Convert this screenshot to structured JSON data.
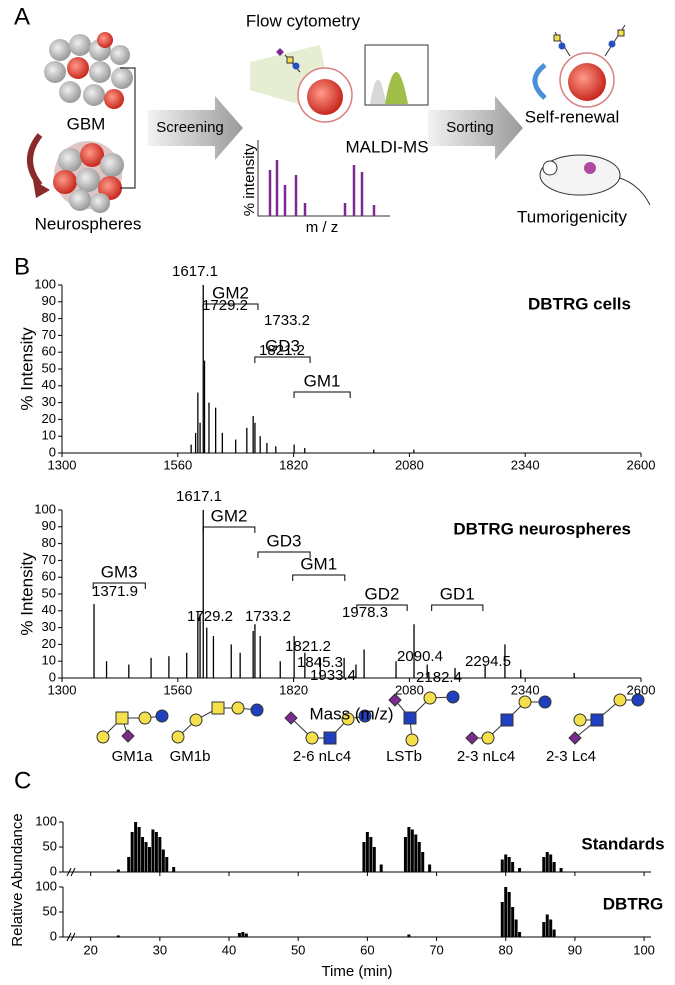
{
  "panel_labels": [
    "A",
    "B",
    "C"
  ],
  "diagram": {
    "gbm": "GBM",
    "neurospheres": "Neurospheres",
    "screening": "Screening",
    "flow_cytometry": "Flow cytometry",
    "maldi_ms": "MALDI-MS",
    "ms_ylabel": "% intensity",
    "ms_xlabel": "m / z",
    "sorting": "Sorting",
    "self_renewal": "Self-renewal",
    "tumorigenicity": "Tumorigenicity"
  },
  "chart_data": [
    {
      "type": "spectrum",
      "title": "DBTRG cells",
      "ylabel": "% Intensity",
      "color": "#000000",
      "xlim": [
        1300,
        2600
      ],
      "xticks": [
        1300,
        1560,
        1820,
        2080,
        2340,
        2600
      ],
      "ylim": [
        0,
        100
      ],
      "yticks": [
        0,
        10,
        20,
        30,
        40,
        50,
        60,
        70,
        80,
        90,
        100
      ],
      "x": [
        1590,
        1600,
        1605,
        1610,
        1617.1,
        1620,
        1630,
        1645,
        1660,
        1690,
        1715,
        1729.2,
        1733.2,
        1745,
        1760,
        1780,
        1821.2,
        1845,
        2000,
        2090
      ],
      "values": [
        5,
        12,
        36,
        18,
        100,
        55,
        30,
        27,
        12,
        8,
        15,
        22,
        18,
        10,
        6,
        4,
        5,
        3,
        2,
        2
      ],
      "peak_labels": [
        1617.1,
        1729.2,
        1733.2,
        1821.2
      ],
      "brackets": [
        {
          "label": "GM2",
          "xrange": [
            1617,
            1740
          ]
        },
        {
          "label": "GD3",
          "xrange": [
            1733,
            1857
          ]
        },
        {
          "label": "GM1",
          "xrange": [
            1821,
            1947
          ]
        }
      ]
    },
    {
      "type": "spectrum",
      "title": "DBTRG neurospheres",
      "ylabel": "% Intensity",
      "xlabel": "Mass (m/z)",
      "color": "#000000",
      "xlim": [
        1300,
        2600
      ],
      "xticks": [
        1300,
        1560,
        1820,
        2080,
        2340,
        2600
      ],
      "ylim": [
        0,
        100
      ],
      "yticks": [
        0,
        10,
        20,
        30,
        40,
        50,
        60,
        70,
        80,
        90,
        100
      ],
      "x": [
        1371.9,
        1400,
        1450,
        1500,
        1540,
        1580,
        1605,
        1610,
        1617.1,
        1625,
        1640,
        1680,
        1700,
        1729.2,
        1733.2,
        1745,
        1790,
        1821.2,
        1845.3,
        1880,
        1933.4,
        1960,
        1978.3,
        2050,
        2090.4,
        2120,
        2182.4,
        2250,
        2294.5,
        2330,
        2450
      ],
      "values": [
        44,
        10,
        8,
        12,
        13,
        15,
        40,
        38,
        100,
        30,
        25,
        20,
        15,
        28,
        32,
        25,
        10,
        25,
        15,
        12,
        12,
        8,
        17,
        10,
        32,
        8,
        6,
        8,
        20,
        5,
        3
      ],
      "peak_labels": [
        1371.9,
        1617.1,
        1729.2,
        1733.2,
        1821.2,
        1845.3,
        1933.4,
        1978.3,
        2090.4,
        2182.4,
        2294.5
      ],
      "brackets": [
        {
          "label": "GM3",
          "xrange": [
            1370,
            1487
          ]
        },
        {
          "label": "GM2",
          "xrange": [
            1617,
            1733
          ]
        },
        {
          "label": "GD3",
          "xrange": [
            1740,
            1857
          ]
        },
        {
          "label": "GM1",
          "xrange": [
            1818,
            1935
          ]
        },
        {
          "label": "GD2",
          "xrange": [
            1962,
            2075
          ]
        },
        {
          "label": "GD1",
          "xrange": [
            2130,
            2245
          ]
        }
      ]
    },
    {
      "type": "chromatogram",
      "xlabel": "Time (min)",
      "ylabel": "Relative Abundance",
      "xlim": [
        16,
        101
      ],
      "xticks": [
        20,
        30,
        40,
        50,
        60,
        70,
        80,
        90,
        100
      ],
      "ylim": [
        0,
        100
      ],
      "yticks": [
        0,
        50,
        100
      ],
      "glycans": [
        "GM1a",
        "GM1b",
        "2-6 nLc4",
        "LSTb",
        "2-3 nLc4",
        "2-3 Lc4"
      ],
      "series": [
        {
          "name": "Standards",
          "color": "#000000",
          "x": [
            24,
            25.5,
            26,
            26.5,
            27,
            27.5,
            28,
            28.5,
            29,
            29.5,
            30,
            30.5,
            31,
            32,
            59.5,
            60,
            60.5,
            61,
            62,
            65.5,
            66,
            66.5,
            67,
            67.5,
            68,
            69,
            79.5,
            80,
            80.5,
            81,
            82,
            85.5,
            86,
            86.5,
            87,
            88
          ],
          "values": [
            5,
            30,
            80,
            100,
            90,
            70,
            60,
            50,
            85,
            80,
            70,
            45,
            30,
            10,
            60,
            80,
            70,
            50,
            15,
            70,
            90,
            85,
            75,
            60,
            40,
            15,
            25,
            35,
            30,
            20,
            8,
            30,
            40,
            35,
            20,
            8
          ]
        },
        {
          "name": "DBTRG",
          "color": "#000000",
          "x": [
            24,
            41.5,
            42,
            42.5,
            66,
            79.5,
            80,
            80.5,
            81,
            81.5,
            82,
            85.5,
            86,
            86.5,
            87
          ],
          "values": [
            3,
            8,
            10,
            7,
            5,
            70,
            100,
            90,
            60,
            35,
            10,
            30,
            45,
            35,
            15
          ]
        }
      ]
    }
  ]
}
